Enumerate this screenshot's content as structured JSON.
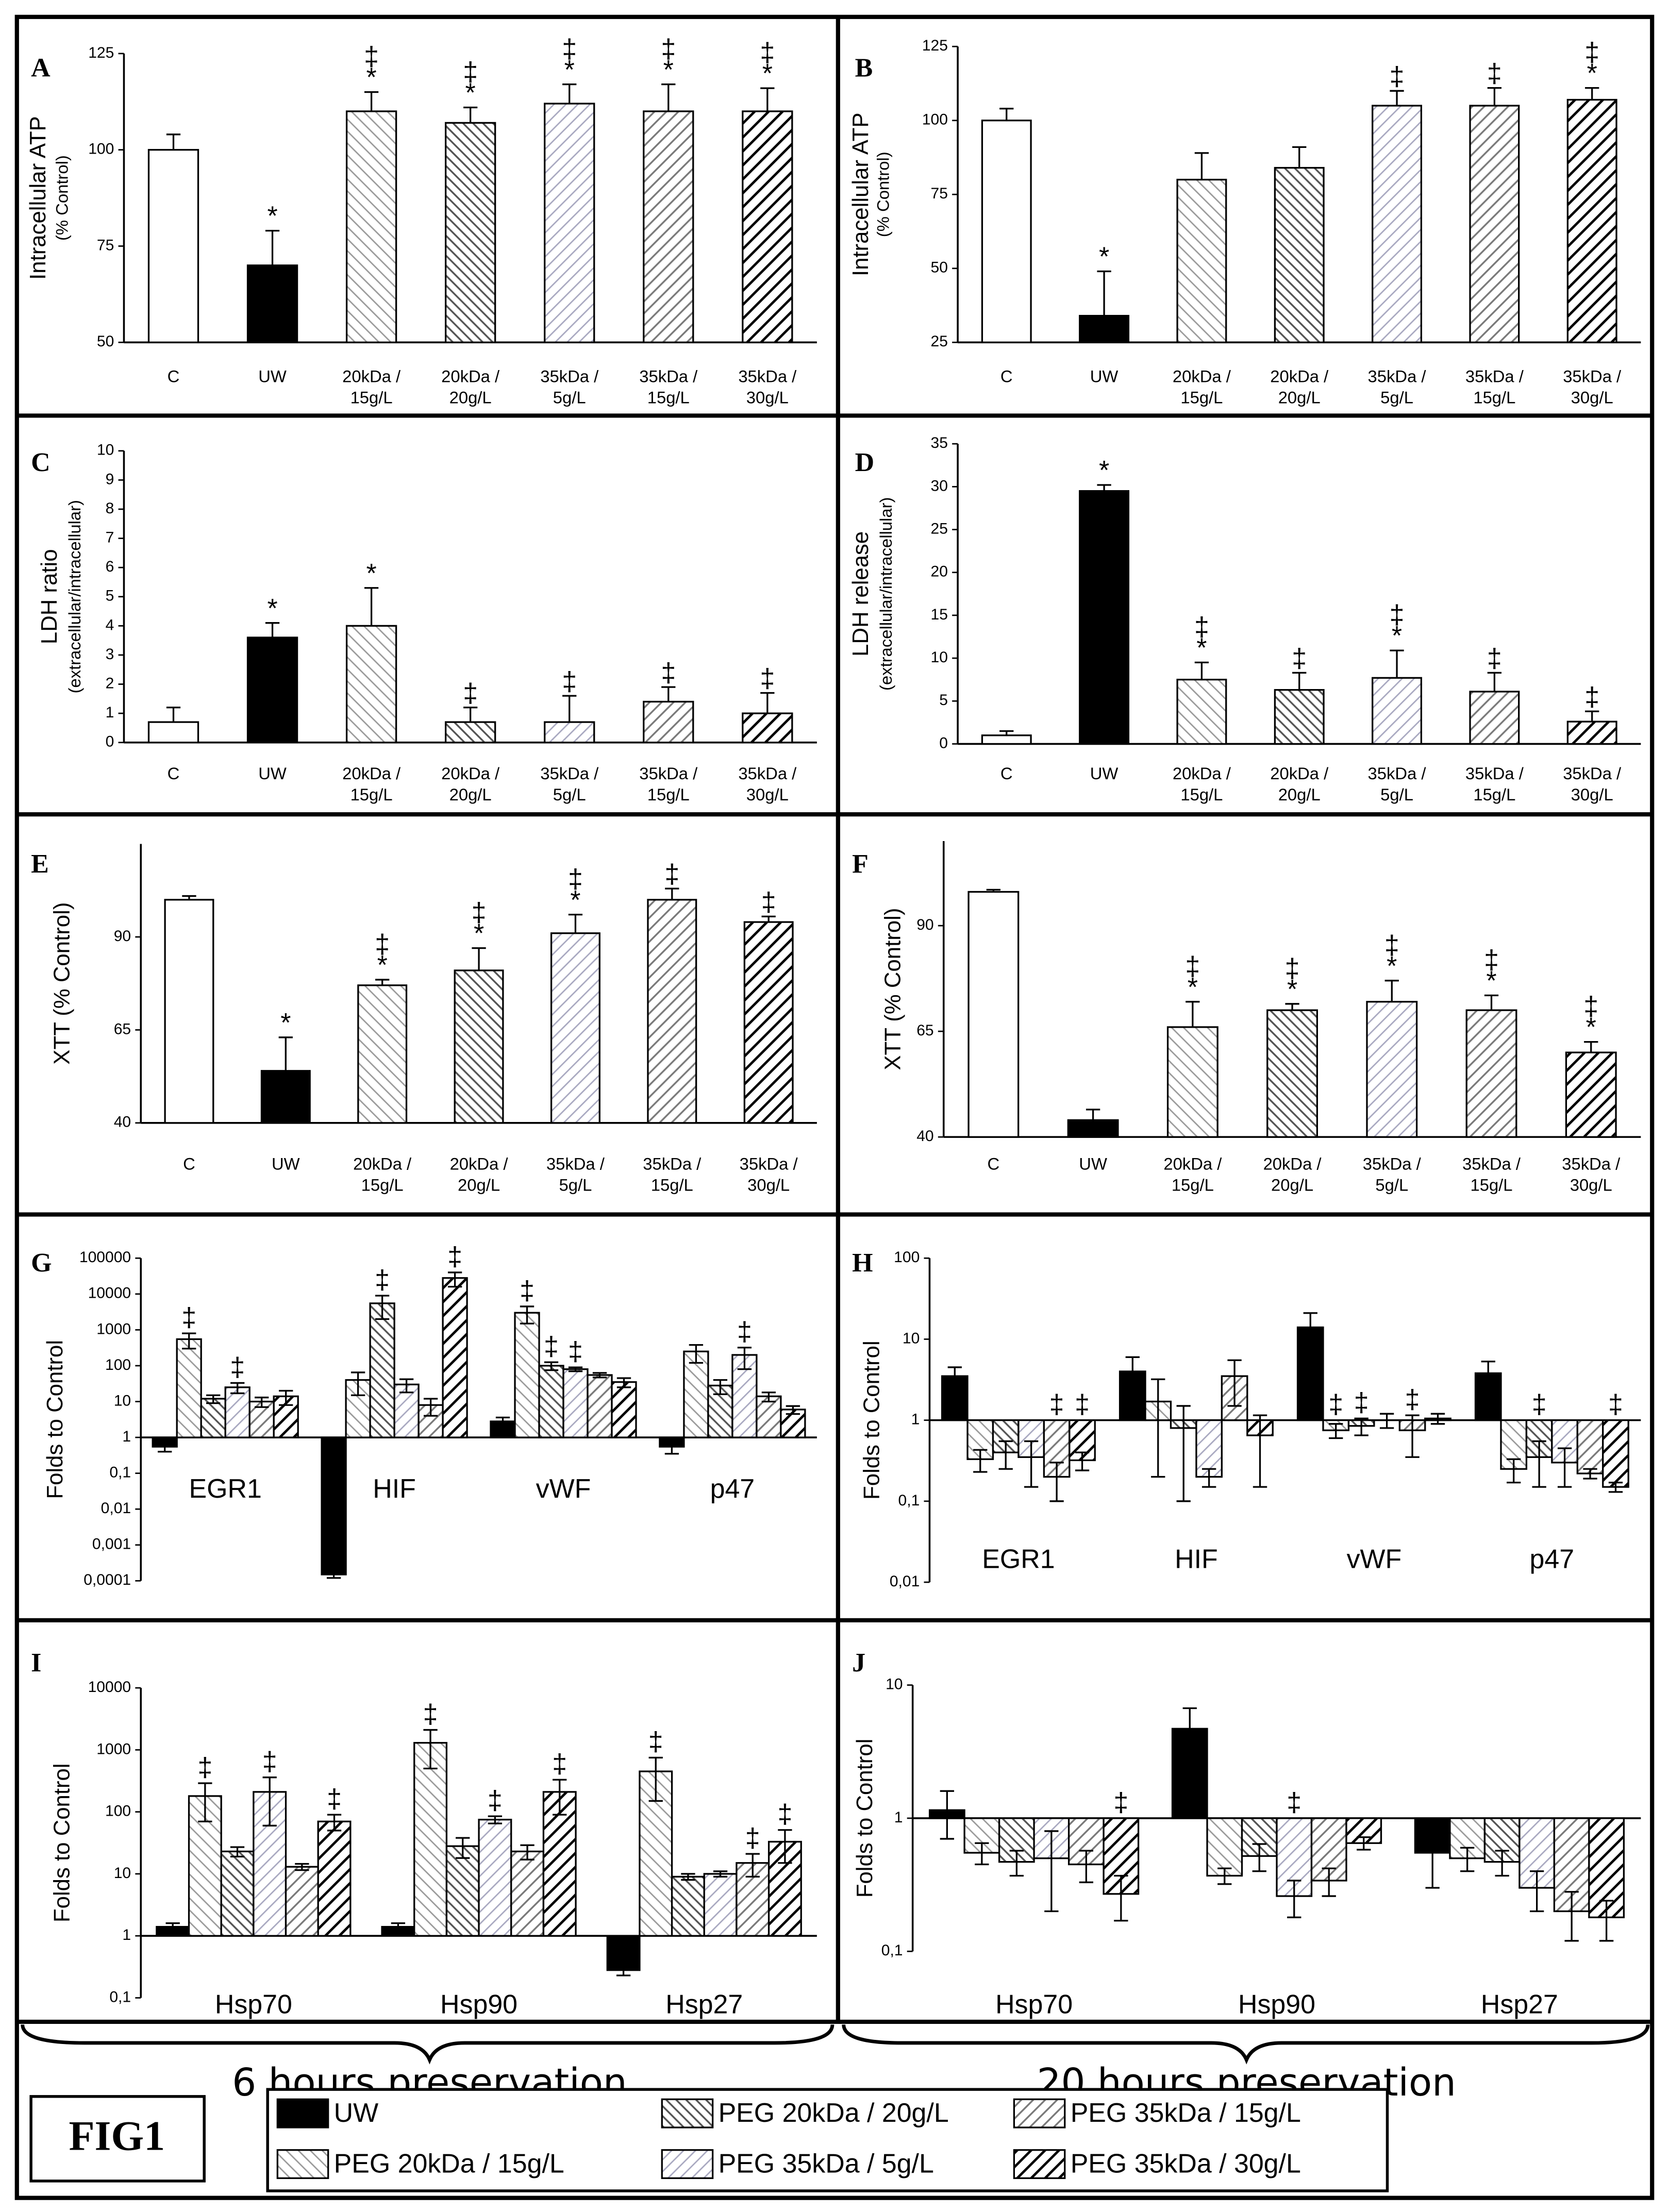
{
  "figure_label": "FIG1",
  "captions": [
    "6 hours preservation",
    "20 hours preservation"
  ],
  "legend": [
    "UW",
    "PEG 20kDa / 15g/L",
    "PEG 20kDa / 20g/L",
    "PEG 35kDa / 5g/L",
    "PEG 35kDa / 15g/L",
    "PEG 35kDa / 30g/L"
  ],
  "styles": [
    {
      "fill": "#ffffff",
      "hatch": null
    },
    {
      "fill": "#000000",
      "hatch": null
    },
    {
      "fill": "#ffffff",
      "hatch": {
        "color": "#9a9a9a",
        "width": 2,
        "spacing": 6,
        "direction": "back"
      }
    },
    {
      "fill": "#ffffff",
      "hatch": {
        "color": "#555555",
        "width": 2.5,
        "spacing": 5,
        "direction": "back"
      }
    },
    {
      "fill": "#ffffff",
      "hatch": {
        "color": "#a8a8c0",
        "width": 2,
        "spacing": 6,
        "direction": "forward"
      }
    },
    {
      "fill": "#ffffff",
      "hatch": {
        "color": "#7a7a7a",
        "width": 2.5,
        "spacing": 6,
        "direction": "forward"
      }
    },
    {
      "fill": "#ffffff",
      "hatch": {
        "color": "#000000",
        "width": 3.5,
        "spacing": 7,
        "direction": "forward"
      }
    }
  ],
  "chart_data": [
    {
      "type": "bar",
      "panel": "A",
      "ylabel": "Intracellular ATP",
      "ylabel2": "(% Control)",
      "categories": [
        [
          "C"
        ],
        [
          "UW"
        ],
        [
          "20kDa /",
          "15g/L"
        ],
        [
          "20kDa /",
          "20g/L"
        ],
        [
          "35kDa /",
          "5g/L"
        ],
        [
          "35kDa /",
          "15g/L"
        ],
        [
          "35kDa /",
          "30g/L"
        ]
      ],
      "values": [
        100,
        70,
        110,
        107,
        112,
        110,
        110
      ],
      "errors": [
        4,
        9,
        5,
        4,
        5,
        7,
        6
      ],
      "annotations": [
        [],
        [
          "*"
        ],
        [
          "‡",
          "*"
        ],
        [
          "‡",
          "*"
        ],
        [
          "‡",
          "*"
        ],
        [
          "‡",
          "*"
        ],
        [
          "‡",
          "*"
        ]
      ],
      "ylim": [
        50,
        125
      ],
      "yticks": [
        50,
        75,
        100,
        125
      ]
    },
    {
      "type": "bar",
      "panel": "B",
      "ylabel": "Intracellular ATP",
      "ylabel2": "(% Control)",
      "categories": [
        [
          "C"
        ],
        [
          "UW"
        ],
        [
          "20kDa /",
          "15g/L"
        ],
        [
          "20kDa /",
          "20g/L"
        ],
        [
          "35kDa /",
          "5g/L"
        ],
        [
          "35kDa /",
          "15g/L"
        ],
        [
          "35kDa /",
          "30g/L"
        ]
      ],
      "values": [
        100,
        34,
        80,
        84,
        105,
        105,
        107
      ],
      "errors": [
        4,
        15,
        9,
        7,
        5,
        6,
        4
      ],
      "annotations": [
        [],
        [
          "*"
        ],
        [],
        [],
        [
          "‡"
        ],
        [
          "‡"
        ],
        [
          "‡",
          "*"
        ]
      ],
      "ylim": [
        25,
        125
      ],
      "yticks": [
        25,
        50,
        75,
        100,
        125
      ]
    },
    {
      "type": "bar",
      "panel": "C",
      "ylabel": "LDH ratio",
      "ylabel2": "(extracellular/intracellular)",
      "categories": [
        [
          "C"
        ],
        [
          "UW"
        ],
        [
          "20kDa /",
          "15g/L"
        ],
        [
          "20kDa /",
          "20g/L"
        ],
        [
          "35kDa /",
          "5g/L"
        ],
        [
          "35kDa /",
          "15g/L"
        ],
        [
          "35kDa /",
          "30g/L"
        ]
      ],
      "values": [
        0.7,
        3.6,
        4.0,
        0.7,
        0.7,
        1.4,
        1.0
      ],
      "errors": [
        0.5,
        0.5,
        1.3,
        0.5,
        0.9,
        0.5,
        0.7
      ],
      "annotations": [
        [],
        [
          "*"
        ],
        [
          "*"
        ],
        [
          "‡"
        ],
        [
          "‡"
        ],
        [
          "‡"
        ],
        [
          "‡"
        ]
      ],
      "ylim": [
        0,
        10
      ],
      "yticks": [
        0,
        1,
        2,
        3,
        4,
        5,
        6,
        7,
        8,
        9,
        10
      ]
    },
    {
      "type": "bar",
      "panel": "D",
      "ylabel": "LDH release",
      "ylabel2": "(extracellular/intracellular)",
      "categories": [
        [
          "C"
        ],
        [
          "UW"
        ],
        [
          "20kDa /",
          "15g/L"
        ],
        [
          "20kDa /",
          "20g/L"
        ],
        [
          "35kDa /",
          "5g/L"
        ],
        [
          "35kDa /",
          "15g/L"
        ],
        [
          "35kDa /",
          "30g/L"
        ]
      ],
      "values": [
        1,
        29.5,
        7.5,
        6.3,
        7.7,
        6.1,
        2.6
      ],
      "errors": [
        0.5,
        0.7,
        2,
        2,
        3.2,
        2.2,
        1.2
      ],
      "annotations": [
        [],
        [
          "*"
        ],
        [
          "‡",
          "*"
        ],
        [
          "‡"
        ],
        [
          "‡",
          "*"
        ],
        [
          "‡"
        ],
        [
          "‡"
        ]
      ],
      "ylim": [
        0,
        35
      ],
      "yticks": [
        0,
        5,
        10,
        15,
        20,
        25,
        30,
        35
      ]
    },
    {
      "type": "bar",
      "panel": "E",
      "ylabel": "XTT  (% Control)",
      "categories": [
        [
          "C"
        ],
        [
          "UW"
        ],
        [
          "20kDa /",
          "15g/L"
        ],
        [
          "20kDa /",
          "20g/L"
        ],
        [
          "35kDa /",
          "5g/L"
        ],
        [
          "35kDa /",
          "15g/L"
        ],
        [
          "35kDa /",
          "30g/L"
        ]
      ],
      "values": [
        100,
        54,
        77,
        81,
        91,
        100,
        94
      ],
      "errors": [
        1,
        9,
        1.5,
        6,
        5,
        3,
        1.5
      ],
      "annotations": [
        [],
        [
          "*"
        ],
        [
          "‡",
          "*"
        ],
        [
          "‡",
          "*"
        ],
        [
          "‡",
          "*"
        ],
        [
          "‡"
        ],
        [
          "‡"
        ]
      ],
      "ylim": [
        40,
        115
      ],
      "yticks": [
        40,
        65,
        90
      ]
    },
    {
      "type": "bar",
      "panel": "F",
      "ylabel": "XTT  (% Control)",
      "categories": [
        [
          "C"
        ],
        [
          "UW"
        ],
        [
          "20kDa /",
          "15g/L"
        ],
        [
          "20kDa /",
          "20g/L"
        ],
        [
          "35kDa /",
          "5g/L"
        ],
        [
          "35kDa /",
          "15g/L"
        ],
        [
          "35kDa /",
          "30g/L"
        ]
      ],
      "values": [
        98,
        44,
        66,
        70,
        72,
        70,
        60
      ],
      "errors": [
        0.5,
        2.5,
        6,
        1.5,
        5,
        3.5,
        2.5
      ],
      "annotations": [
        [],
        [],
        [
          "‡",
          "*"
        ],
        [
          "‡",
          "*"
        ],
        [
          "‡",
          "*"
        ],
        [
          "‡",
          "*"
        ],
        [
          "‡",
          "*"
        ]
      ],
      "ylim": [
        40,
        110
      ],
      "yticks": [
        40,
        65,
        90
      ]
    },
    {
      "type": "grouped_bar",
      "panel": "G",
      "ylabel": "Folds to Control",
      "log_scale": true,
      "categories": [
        "EGR1",
        "HIF",
        "vWF",
        "p47"
      ],
      "series": [
        {
          "values": [
            0.55,
            0.00015,
            2.8,
            0.55
          ],
          "errors": [
            0.15,
            3e-05,
            0.8,
            0.2
          ],
          "annotations": [
            null,
            null,
            null,
            null
          ]
        },
        {
          "values": [
            550,
            40,
            3000,
            250
          ],
          "errors": [
            250,
            25,
            1500,
            130
          ],
          "annotations": [
            "‡",
            null,
            "‡",
            null
          ]
        },
        {
          "values": [
            12,
            5500,
            100,
            28
          ],
          "errors": [
            3,
            3500,
            25,
            12
          ],
          "annotations": [
            null,
            "‡",
            "‡",
            null
          ]
        },
        {
          "values": [
            25,
            30,
            80,
            200
          ],
          "errors": [
            8,
            12,
            10,
            120
          ],
          "annotations": [
            "‡",
            null,
            "‡",
            "‡"
          ]
        },
        {
          "values": [
            10,
            8,
            55,
            14
          ],
          "errors": [
            3,
            4,
            8,
            4
          ],
          "annotations": [
            null,
            null,
            null,
            null
          ]
        },
        {
          "values": [
            14,
            28000,
            35,
            6
          ],
          "errors": [
            6,
            12000,
            10,
            1.5
          ],
          "annotations": [
            null,
            "‡",
            null,
            null
          ]
        }
      ],
      "ylim": [
        0.0001,
        100000
      ],
      "yticks": [
        {
          "value": 0.0001,
          "label": "0,0001"
        },
        {
          "value": 0.001,
          "label": "0,001"
        },
        {
          "value": 0.01,
          "label": "0,01"
        },
        {
          "value": 0.1,
          "label": "0,1"
        },
        1,
        10,
        100,
        1000,
        10000,
        100000
      ]
    },
    {
      "type": "grouped_bar",
      "panel": "H",
      "ylabel": "Folds to Control",
      "log_scale": true,
      "categories": [
        "EGR1",
        "HIF",
        "vWF",
        "p47"
      ],
      "series": [
        {
          "values": [
            3.5,
            4,
            14,
            3.8
          ],
          "errors": [
            1,
            2,
            7,
            1.5
          ],
          "annotations": [
            null,
            null,
            null,
            null
          ]
        },
        {
          "values": [
            0.33,
            1.7,
            0.75,
            0.25
          ],
          "errors": [
            0.1,
            1.5,
            0.15,
            0.08
          ],
          "annotations": [
            null,
            null,
            "‡",
            null
          ]
        },
        {
          "values": [
            0.4,
            0.8,
            0.85,
            0.35
          ],
          "errors": [
            0.15,
            0.7,
            0.2,
            0.2
          ],
          "annotations": [
            null,
            null,
            "‡",
            "‡"
          ]
        },
        {
          "values": [
            0.35,
            0.2,
            1.0,
            0.3
          ],
          "errors": [
            0.2,
            0.05,
            0.2,
            0.15
          ],
          "annotations": [
            null,
            null,
            null,
            null
          ]
        },
        {
          "values": [
            0.2,
            3.5,
            0.75,
            0.22
          ],
          "errors": [
            0.1,
            2,
            0.4,
            0.03
          ],
          "annotations": [
            "‡",
            null,
            "‡",
            null
          ]
        },
        {
          "values": [
            0.32,
            0.65,
            1.05,
            0.15
          ],
          "errors": [
            0.08,
            0.5,
            0.15,
            0.02
          ],
          "annotations": [
            "‡",
            null,
            null,
            "‡"
          ]
        }
      ],
      "ylim": [
        0.01,
        100
      ],
      "yticks": [
        {
          "value": 0.01,
          "label": "0,01"
        },
        {
          "value": 0.1,
          "label": "0,1"
        },
        1,
        10,
        100
      ]
    },
    {
      "type": "grouped_bar",
      "panel": "I",
      "ylabel": "Folds to Control",
      "log_scale": true,
      "categories": [
        "Hsp70",
        "Hsp90",
        "Hsp27"
      ],
      "series": [
        {
          "values": [
            1.4,
            1.4,
            0.28
          ],
          "errors": [
            0.2,
            0.2,
            0.05
          ],
          "annotations": [
            null,
            null,
            null
          ]
        },
        {
          "values": [
            180,
            1300,
            450
          ],
          "errors": [
            110,
            800,
            300
          ],
          "annotations": [
            "‡",
            "‡",
            "‡"
          ]
        },
        {
          "values": [
            23,
            28,
            9
          ],
          "errors": [
            4,
            10,
            1
          ],
          "annotations": [
            null,
            null,
            null
          ]
        },
        {
          "values": [
            210,
            75,
            10
          ],
          "errors": [
            150,
            10,
            1
          ],
          "annotations": [
            "‡",
            "‡",
            null
          ]
        },
        {
          "values": [
            13,
            23,
            15
          ],
          "errors": [
            1.5,
            6,
            6
          ],
          "annotations": [
            null,
            null,
            "‡"
          ]
        },
        {
          "values": [
            70,
            210,
            33
          ],
          "errors": [
            20,
            120,
            18
          ],
          "annotations": [
            "‡",
            "‡",
            "‡"
          ]
        }
      ],
      "ylim": [
        0.1,
        10000
      ],
      "yticks": [
        {
          "value": 0.1,
          "label": "0,1"
        },
        1,
        10,
        100,
        1000,
        10000
      ]
    },
    {
      "type": "grouped_bar",
      "panel": "J",
      "ylabel": "Folds to Control",
      "log_scale": true,
      "categories": [
        "Hsp70",
        "Hsp90",
        "Hsp27"
      ],
      "series": [
        {
          "values": [
            1.15,
            4.7,
            0.55
          ],
          "errors": [
            0.45,
            2,
            0.25
          ],
          "annotations": [
            null,
            null,
            null
          ]
        },
        {
          "values": [
            0.55,
            0.37,
            0.5
          ],
          "errors": [
            0.1,
            0.05,
            0.1
          ],
          "annotations": [
            null,
            null,
            null
          ]
        },
        {
          "values": [
            0.47,
            0.52,
            0.47
          ],
          "errors": [
            0.1,
            0.12,
            0.1
          ],
          "annotations": [
            null,
            null,
            null
          ]
        },
        {
          "values": [
            0.5,
            0.26,
            0.3
          ],
          "errors": [
            0.3,
            0.08,
            0.1
          ],
          "annotations": [
            null,
            "‡",
            null
          ]
        },
        {
          "values": [
            0.45,
            0.34,
            0.2
          ],
          "errors": [
            0.12,
            0.08,
            0.08
          ],
          "annotations": [
            null,
            null,
            null
          ]
        },
        {
          "values": [
            0.27,
            0.65,
            0.18
          ],
          "errors": [
            0.1,
            0.07,
            0.06
          ],
          "annotations": [
            "‡",
            null,
            null
          ]
        }
      ],
      "ylim": [
        0.1,
        10
      ],
      "yticks": [
        {
          "value": 0.1,
          "label": "0,1"
        },
        1,
        10
      ]
    }
  ]
}
